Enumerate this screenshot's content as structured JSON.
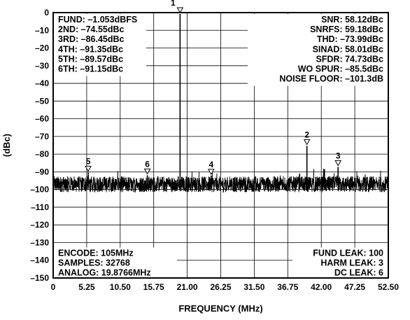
{
  "chart_data": {
    "type": "line",
    "title": "",
    "xlabel": "FREQUENCY (MHz)",
    "ylabel": "(dBc)",
    "xlim": [
      0,
      52.5
    ],
    "ylim": [
      -150,
      0
    ],
    "x_ticks": [
      "0",
      "5.25",
      "10.50",
      "15.75",
      "21.00",
      "26.25",
      "31.50",
      "36.75",
      "42.00",
      "47.25",
      "52.50"
    ],
    "y_ticks": [
      "0",
      "–10",
      "–20",
      "–30",
      "–40",
      "–50",
      "–60",
      "–70",
      "–80",
      "–90",
      "–100",
      "–110",
      "–120",
      "–130",
      "–140",
      "–150"
    ],
    "grid": true,
    "noise_floor_dbc": -97,
    "spurs": [
      {
        "x": 19.8766,
        "y": 0,
        "marker": true,
        "label": "1"
      },
      {
        "x": 39.75,
        "y": -74.55,
        "marker": true,
        "label": "2"
      },
      {
        "x": 44.63,
        "y": -86.45,
        "marker": true,
        "label": "3"
      },
      {
        "x": 24.75,
        "y": -91.35,
        "marker": true,
        "label": "4"
      },
      {
        "x": 5.49,
        "y": -89.57,
        "marker": true,
        "label": "5"
      },
      {
        "x": 14.75,
        "y": -91.15,
        "marker": true,
        "label": "6"
      },
      {
        "x": 42.5,
        "y": -88.5,
        "marker": false,
        "label": ""
      },
      {
        "x": 38.6,
        "y": -91,
        "marker": false,
        "label": ""
      }
    ],
    "annotations": {
      "top_left": [
        "FUND: –1.053dBFS",
        "2ND: –74.55dBc",
        "3RD: –86.45dBc",
        "4TH: –91.35dBc",
        "5TH: –89.57dBc",
        "6TH: –91.15dBc"
      ],
      "top_right": [
        "SNR: 58.12dBc",
        "SNRFS: 59.18dBc",
        "THD: –73.99dBc",
        "SINAD: 58.01dBc",
        "SFDR: 74.73dBc",
        "WO SPUR: –85.5dBc",
        "NOISE FLOOR: –101.3dB"
      ],
      "bottom_left": [
        "ENCODE: 105MHz",
        "SAMPLES: 32768",
        "ANALOG: 19.8766MHz"
      ],
      "bottom_right": [
        "FUND LEAK: 100",
        "HARM LEAK: 3",
        "DC LEAK: 6"
      ]
    }
  }
}
